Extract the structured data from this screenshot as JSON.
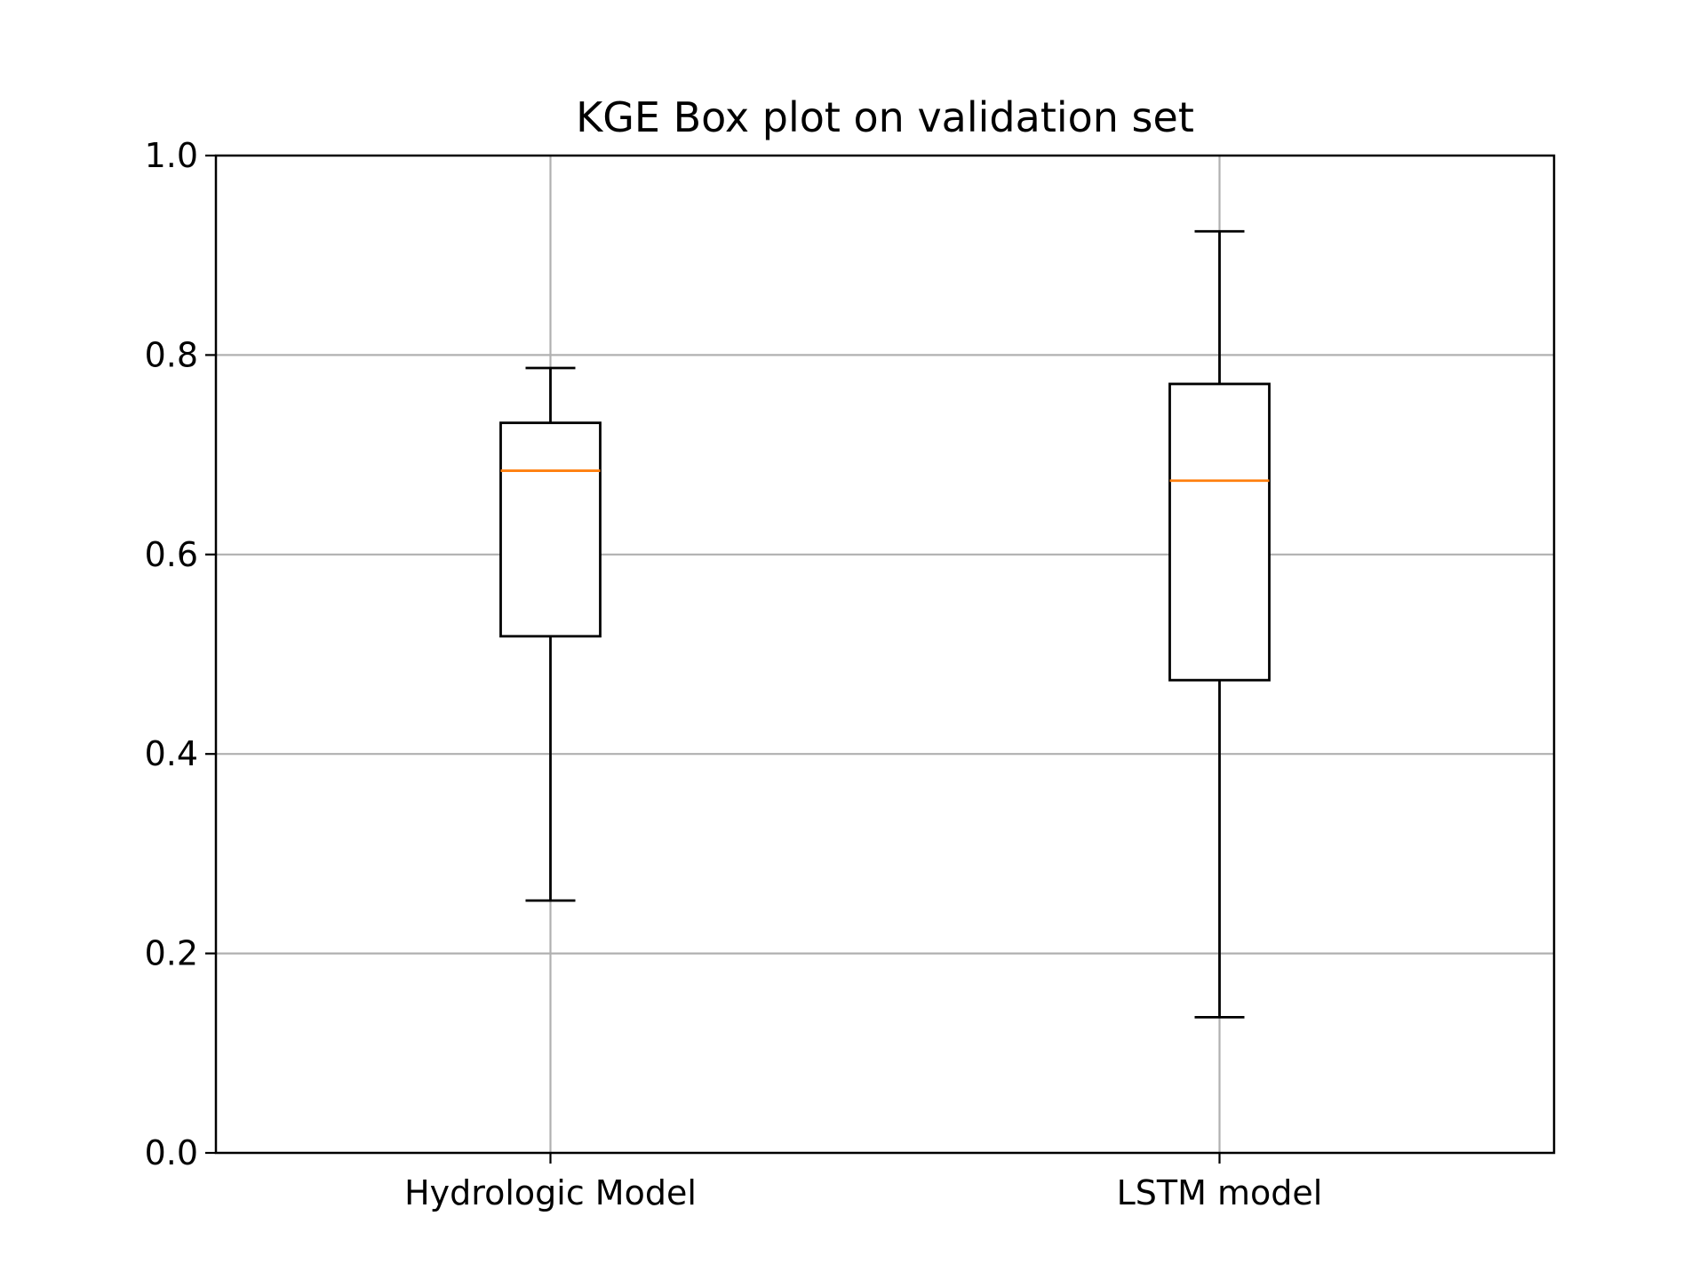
{
  "chart_data": {
    "type": "box",
    "title": "KGE Box plot on validation set",
    "xlabel": "",
    "ylabel": "",
    "ylim": [
      0.0,
      1.0
    ],
    "yticks": [
      "0.0",
      "0.2",
      "0.4",
      "0.6",
      "0.8",
      "1.0"
    ],
    "grid": true,
    "categories": [
      "Hydrologic Model",
      "LSTM model"
    ],
    "boxes": [
      {
        "category": "Hydrologic Model",
        "whisker_low": 0.253,
        "q1": 0.518,
        "median": 0.684,
        "q3": 0.732,
        "whisker_high": 0.787
      },
      {
        "category": "LSTM model",
        "whisker_low": 0.136,
        "q1": 0.474,
        "median": 0.674,
        "q3": 0.771,
        "whisker_high": 0.924
      }
    ],
    "colors": {
      "box": "#000000",
      "median": "#ff7f0e",
      "grid": "#b0b0b0"
    }
  }
}
